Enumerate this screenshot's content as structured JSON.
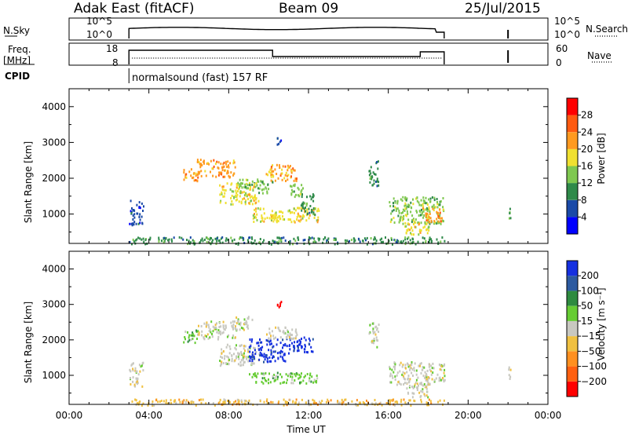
{
  "header": {
    "station": "Adak East (fitACF)",
    "beam": "Beam 09",
    "date": "25/Jul/2015"
  },
  "noise_panel": {
    "left_label": "N.Sky",
    "left_ticks": [
      "10^5",
      "10^0"
    ],
    "right_ticks": [
      "10^5",
      "10^0"
    ],
    "right_label": "N.Search"
  },
  "freq_panel": {
    "left_label_1": "Freq.",
    "left_label_2": "[MHz]",
    "left_ticks": [
      "18",
      "8"
    ],
    "right_ticks": [
      "60",
      "0"
    ],
    "right_label": "Nave"
  },
  "cpid": {
    "label": "CPID",
    "mode": "normalsound (fast) 157 RF"
  },
  "colors": {
    "power": [
      "#0000ff",
      "#1a4aa8",
      "#2f8a4a",
      "#7fc850",
      "#f0e030",
      "#ff9a20",
      "#ff5a10",
      "#ff0000"
    ],
    "velocity": [
      "#1530e0",
      "#2c5aa0",
      "#2e8b40",
      "#66cc33",
      "#c8c8c0",
      "#f0c040",
      "#ff9020",
      "#ff6010",
      "#ff0000"
    ]
  },
  "chart_data": [
    {
      "type": "heatmap",
      "name": "power",
      "ylabel": "Slant Range [km]",
      "yticks": [
        1000,
        2000,
        3000,
        4000
      ],
      "ylim": [
        180,
        4500
      ],
      "xlim_hours": [
        0,
        24
      ],
      "colorbar": {
        "label": "Power [dB]",
        "ticks": [
          "4",
          "8",
          "12",
          "16",
          "20",
          "24",
          "28"
        ]
      },
      "regions": [
        {
          "t0": 3.0,
          "t1": 3.7,
          "r0": 700,
          "r1": 1400,
          "level": 1
        },
        {
          "t0": 5.7,
          "t1": 6.4,
          "r0": 1950,
          "r1": 2300,
          "level": 5
        },
        {
          "t0": 6.4,
          "t1": 8.3,
          "r0": 2050,
          "r1": 2550,
          "level": 5
        },
        {
          "t0": 7.5,
          "t1": 9.5,
          "r0": 1300,
          "r1": 1900,
          "level": 4
        },
        {
          "t0": 8.5,
          "t1": 10.2,
          "r0": 1600,
          "r1": 2000,
          "level": 3
        },
        {
          "t0": 9.2,
          "t1": 10.5,
          "r0": 800,
          "r1": 1200,
          "level": 4
        },
        {
          "t0": 10.0,
          "t1": 12.5,
          "r0": 800,
          "r1": 1200,
          "level": 4
        },
        {
          "t0": 9.8,
          "t1": 11.4,
          "r0": 1950,
          "r1": 2400,
          "level": 5
        },
        {
          "t0": 11.0,
          "t1": 11.7,
          "r0": 1500,
          "r1": 1900,
          "level": 3
        },
        {
          "t0": 11.6,
          "t1": 12.3,
          "r0": 1000,
          "r1": 1600,
          "level": 2
        },
        {
          "t0": 16.0,
          "t1": 18.8,
          "r0": 750,
          "r1": 1500,
          "level": 3
        },
        {
          "t0": 17.7,
          "t1": 18.7,
          "r0": 800,
          "r1": 1200,
          "level": 5
        },
        {
          "t0": 16.8,
          "t1": 18.0,
          "r0": 400,
          "r1": 800,
          "level": 4
        },
        {
          "t0": 15.0,
          "t1": 15.5,
          "r0": 1800,
          "r1": 2500,
          "level": 2
        },
        {
          "t0": 10.4,
          "t1": 10.6,
          "r0": 2950,
          "r1": 3150,
          "level": 1
        },
        {
          "t0": 22.0,
          "t1": 22.1,
          "r0": 900,
          "r1": 1300,
          "level": 2
        },
        {
          "t0": 3.0,
          "t1": 18.8,
          "r0": 180,
          "r1": 380,
          "level": 2
        }
      ]
    },
    {
      "type": "heatmap",
      "name": "velocity",
      "xlabel": "Time UT",
      "ylabel": "Slant Range [km]",
      "yticks": [
        1000,
        2000,
        3000,
        4000
      ],
      "ylim": [
        180,
        4500
      ],
      "xlim_hours": [
        0,
        24
      ],
      "xticks": [
        "00:00",
        "04:00",
        "08:00",
        "12:00",
        "16:00",
        "20:00",
        "00:00"
      ],
      "colorbar": {
        "label": "Velocity [m s⁻¹]",
        "ticks": [
          "200",
          "100",
          "50",
          "15",
          "−15",
          "−50",
          "−100",
          "−200"
        ]
      },
      "regions": [
        {
          "t0": 3.0,
          "t1": 3.7,
          "r0": 700,
          "r1": 1400,
          "level": 4
        },
        {
          "t0": 5.7,
          "t1": 6.4,
          "r0": 1950,
          "r1": 2300,
          "level": 3
        },
        {
          "t0": 6.4,
          "t1": 8.3,
          "r0": 2050,
          "r1": 2550,
          "level": 4
        },
        {
          "t0": 8.3,
          "t1": 9.2,
          "r0": 2300,
          "r1": 2700,
          "level": 4
        },
        {
          "t0": 7.5,
          "t1": 9.5,
          "r0": 1300,
          "r1": 1900,
          "level": 4
        },
        {
          "t0": 9.0,
          "t1": 10.8,
          "r0": 1400,
          "r1": 2050,
          "level": 0
        },
        {
          "t0": 10.8,
          "t1": 12.2,
          "r0": 1650,
          "r1": 2100,
          "level": 0
        },
        {
          "t0": 9.0,
          "t1": 10.5,
          "r0": 800,
          "r1": 1100,
          "level": 3
        },
        {
          "t0": 10.5,
          "t1": 12.5,
          "r0": 800,
          "r1": 1100,
          "level": 3
        },
        {
          "t0": 9.8,
          "t1": 11.4,
          "r0": 2050,
          "r1": 2400,
          "level": 4
        },
        {
          "t0": 16.0,
          "t1": 18.8,
          "r0": 750,
          "r1": 1400,
          "level": 4
        },
        {
          "t0": 16.8,
          "t1": 18.0,
          "r0": 400,
          "r1": 800,
          "level": 4
        },
        {
          "t0": 15.0,
          "t1": 15.5,
          "r0": 1800,
          "r1": 2500,
          "level": 4
        },
        {
          "t0": 10.4,
          "t1": 10.6,
          "r0": 2950,
          "r1": 3150,
          "level": 8
        },
        {
          "t0": 22.0,
          "t1": 22.1,
          "r0": 900,
          "r1": 1300,
          "level": 4
        },
        {
          "t0": 3.0,
          "t1": 18.8,
          "r0": 180,
          "r1": 350,
          "level": 5
        }
      ]
    }
  ],
  "time_series": {
    "operating_hours": [
      3.0,
      18.8
    ],
    "extra_hour": 22.0
  }
}
